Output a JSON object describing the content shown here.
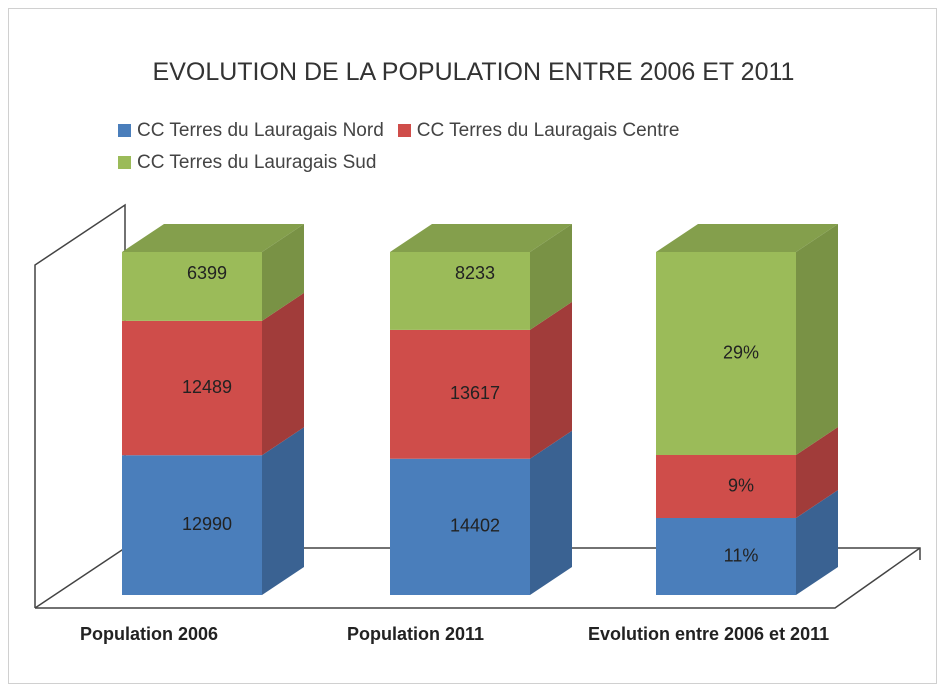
{
  "chart_data": {
    "type": "bar3d",
    "stacking": "percent",
    "title": "EVOLUTION DE LA POPULATION ENTRE 2006 ET 2011",
    "categories": [
      "Population 2006",
      "Population 2011",
      "Evolution entre 2006 et 2011"
    ],
    "series": [
      {
        "name": "CC Terres du Lauragais Nord",
        "color": "#4a7ebb",
        "values": [
          12990,
          14402,
          11
        ],
        "value_labels": [
          "12990",
          "14402",
          "11%"
        ]
      },
      {
        "name": "CC Terres du Lauragais Centre",
        "color": "#cf4d4a",
        "values": [
          12489,
          13617,
          9
        ],
        "value_labels": [
          "12489",
          "13617",
          "9%"
        ]
      },
      {
        "name": "CC Terres du Lauragais Sud",
        "color": "#9bbb59",
        "values": [
          6399,
          8233,
          29
        ],
        "value_labels": [
          "6399",
          "8233",
          "29%"
        ]
      }
    ]
  }
}
